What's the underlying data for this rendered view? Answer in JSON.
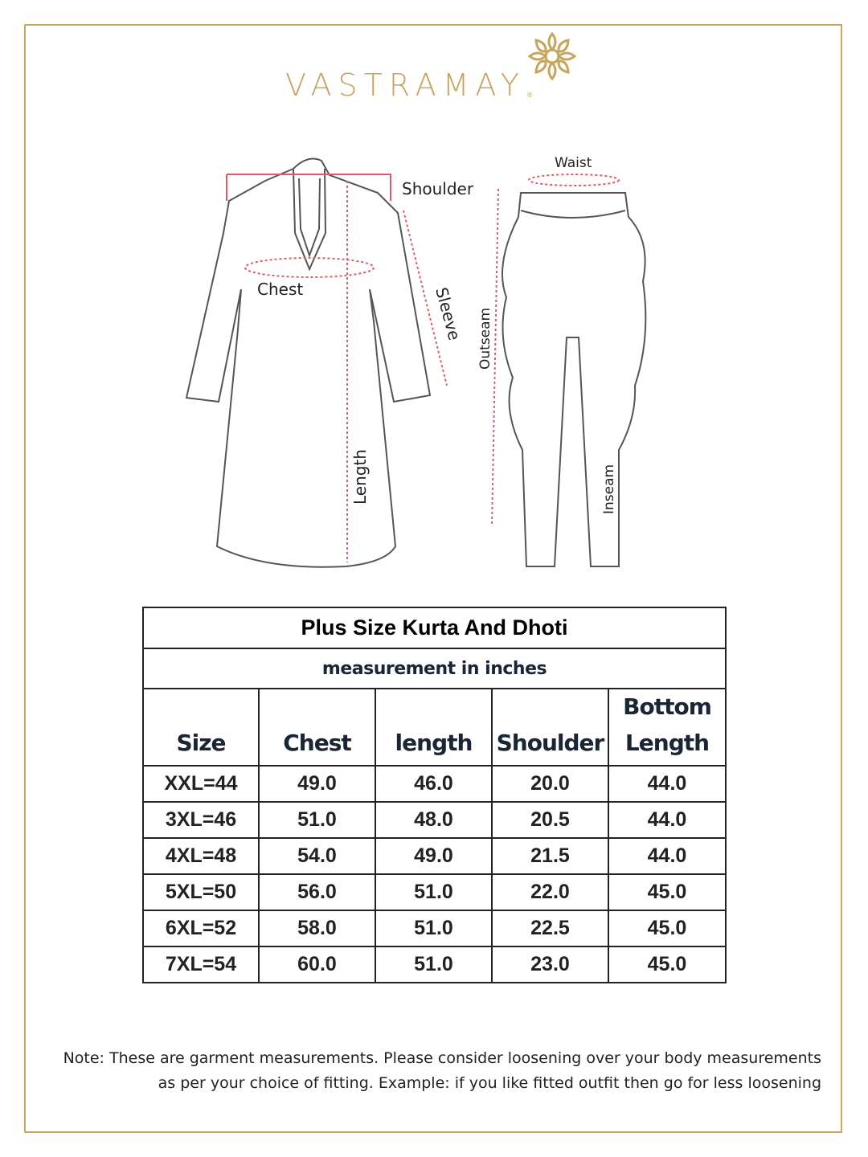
{
  "brand": {
    "name": "VASTRAMAY",
    "registered": "®",
    "color": "#c6a55e"
  },
  "illustration": {
    "kurta_labels": {
      "shoulder": "Shoulder",
      "chest": "Chest",
      "sleeve": "Sleeve",
      "length": "Length"
    },
    "dhoti_labels": {
      "waist": "Waist",
      "outseam": "Outseam",
      "inseam": "Inseam"
    },
    "measure_line_color": "#e05a6a"
  },
  "table": {
    "title": "Plus Size Kurta And Dhoti",
    "subtitle": "measurement in inches",
    "headers": [
      "Size",
      "Chest",
      "length",
      "Shoulder",
      "Bottom Length"
    ],
    "rows": [
      [
        "XXL=44",
        "49.0",
        "46.0",
        "20.0",
        "44.0"
      ],
      [
        "3XL=46",
        "51.0",
        "48.0",
        "20.5",
        "44.0"
      ],
      [
        "4XL=48",
        "54.0",
        "49.0",
        "21.5",
        "44.0"
      ],
      [
        "5XL=50",
        "56.0",
        "51.0",
        "22.0",
        "45.0"
      ],
      [
        "6XL=52",
        "58.0",
        "51.0",
        "22.5",
        "45.0"
      ],
      [
        "7XL=54",
        "60.0",
        "51.0",
        "23.0",
        "45.0"
      ]
    ]
  },
  "note": {
    "line1": "Note: These are garment measurements. Please consider loosening over your body measurements",
    "line2": "as per your choice of fitting. Example: if you like fitted outfit then go for less loosening"
  }
}
